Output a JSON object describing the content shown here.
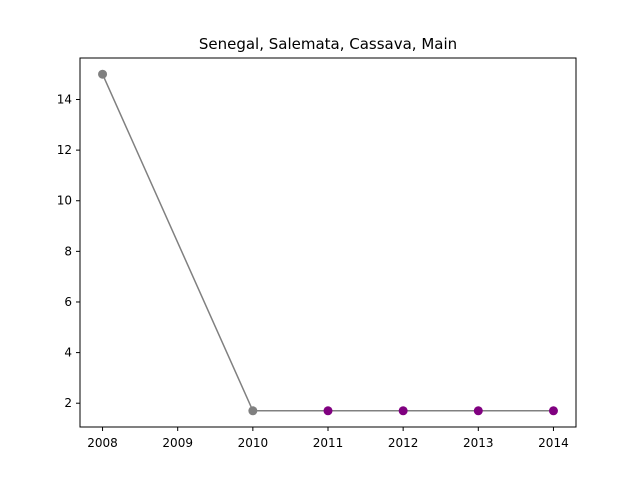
{
  "chart_data": {
    "type": "line",
    "title": "Senegal, Salemata, Cassava, Main",
    "xlabel": "",
    "ylabel": "",
    "x": [
      2008,
      2010,
      2011,
      2012,
      2013,
      2014
    ],
    "series": [
      {
        "values": [
          15.0,
          1.7,
          1.7,
          1.7,
          1.7,
          1.7
        ],
        "line_color": "#808080",
        "point_colors": [
          "#808080",
          "#808080",
          "#800080",
          "#800080",
          "#800080",
          "#800080"
        ]
      }
    ],
    "xlim": [
      2007.7,
      2014.3
    ],
    "ylim": [
      1.06,
      15.64
    ],
    "x_ticks": [
      2008,
      2009,
      2010,
      2011,
      2012,
      2013,
      2014
    ],
    "x_tick_labels": [
      "2008",
      "2009",
      "2010",
      "2011",
      "2012",
      "2013",
      "2014"
    ],
    "y_ticks": [
      2,
      4,
      6,
      8,
      10,
      12,
      14
    ],
    "y_tick_labels": [
      "2",
      "4",
      "6",
      "8",
      "10",
      "12",
      "14"
    ],
    "grid": false,
    "legend": "none"
  }
}
